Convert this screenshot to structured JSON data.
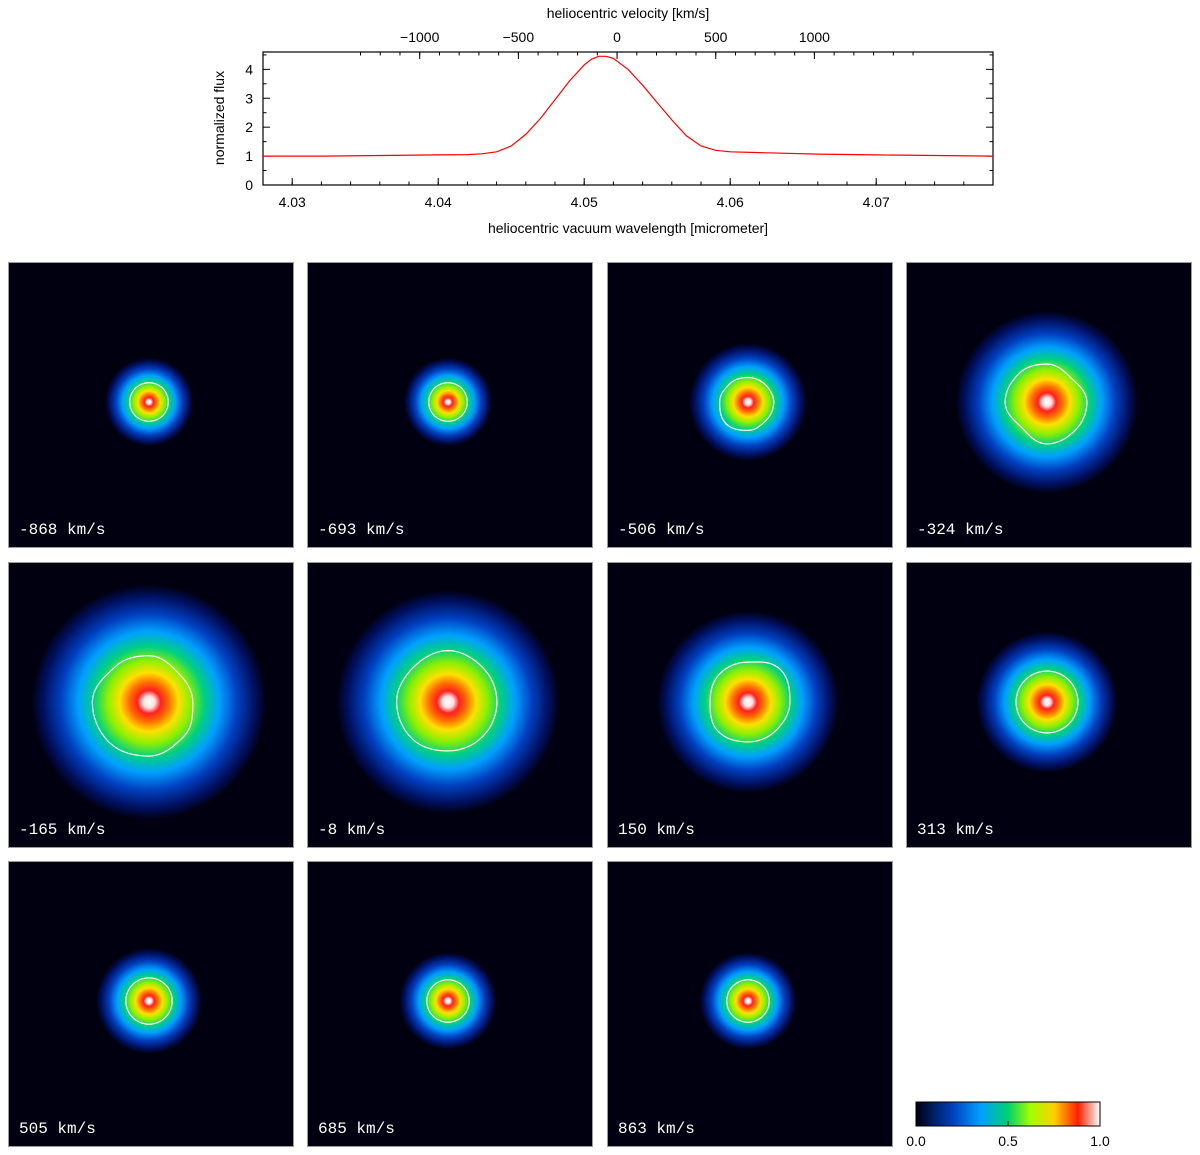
{
  "chart_data": [
    {
      "type": "line",
      "xlabel": "heliocentric vacuum wavelength [micrometer]",
      "x2label": "heliocentric velocity [km/s]",
      "ylabel": "normalized flux",
      "xlim": [
        4.028,
        4.078
      ],
      "ylim": [
        0,
        4.6
      ],
      "x_ticks": [
        "4.03",
        "4.04",
        "4.05",
        "4.06",
        "4.07"
      ],
      "x2_ticks": [
        "−1000",
        "−500",
        "0",
        "500",
        "1000"
      ],
      "x2_tick_values": [
        -1000,
        -500,
        0,
        500,
        1000
      ],
      "y_ticks": [
        "0",
        "1",
        "2",
        "3",
        "4"
      ],
      "line_color": "#ff0000",
      "series": [
        {
          "x": [
            4.028,
            4.032,
            4.036,
            4.04,
            4.042,
            4.043,
            4.044,
            4.045,
            4.046,
            4.047,
            4.048,
            4.049,
            4.05,
            4.0505,
            4.051,
            4.0515,
            4.052,
            4.053,
            4.054,
            4.055,
            4.056,
            4.057,
            4.058,
            4.059,
            4.06,
            4.062,
            4.066,
            4.07,
            4.074,
            4.078
          ],
          "y": [
            1.0,
            1.0,
            1.02,
            1.04,
            1.05,
            1.08,
            1.15,
            1.35,
            1.75,
            2.3,
            2.95,
            3.6,
            4.15,
            4.35,
            4.45,
            4.45,
            4.38,
            4.0,
            3.45,
            2.85,
            2.25,
            1.7,
            1.35,
            1.2,
            1.15,
            1.12,
            1.07,
            1.04,
            1.02,
            1.0
          ]
        }
      ]
    },
    {
      "type": "heatmap",
      "colorbar": {
        "min": 0.0,
        "max": 1.0,
        "tick_labels": [
          "0.0",
          "0.5",
          "1.0"
        ]
      },
      "contour_color": "#ffffff",
      "panels": [
        {
          "label": "-868 km/s",
          "core_size": 0.3,
          "shape": [
            1,
            1,
            1,
            1,
            1,
            1,
            1,
            1
          ]
        },
        {
          "label": "-693 km/s",
          "core_size": 0.3,
          "shape": [
            1,
            1,
            1,
            1,
            1,
            1,
            1,
            1
          ]
        },
        {
          "label": "-506 km/s",
          "core_size": 0.4,
          "shape": [
            1.0,
            0.95,
            0.95,
            1.0,
            1.1,
            1.2,
            1.1,
            1.0
          ]
        },
        {
          "label": "-324 km/s",
          "core_size": 0.62,
          "shape": [
            1.0,
            0.85,
            0.95,
            1.0,
            1.05,
            0.9,
            1.05,
            1.0
          ]
        },
        {
          "label": "-165 km/s",
          "core_size": 0.8,
          "shape": [
            0.85,
            0.8,
            0.9,
            0.95,
            1.1,
            1.1,
            1.05,
            0.95
          ]
        },
        {
          "label": "-8 km/s",
          "core_size": 0.76,
          "shape": [
            1.0,
            1.0,
            1.05,
            1.0,
            1.05,
            1.05,
            1.0,
            1.0
          ]
        },
        {
          "label": "150 km/s",
          "core_size": 0.62,
          "shape": [
            1.05,
            1.15,
            1.0,
            1.0,
            0.95,
            1.05,
            1.0,
            1.0
          ]
        },
        {
          "label": "313 km/s",
          "core_size": 0.48,
          "shape": [
            1,
            1,
            1,
            1,
            1,
            1,
            1,
            1
          ]
        },
        {
          "label": "505 km/s",
          "core_size": 0.36,
          "shape": [
            1,
            1,
            1,
            1,
            1,
            1,
            1,
            1
          ]
        },
        {
          "label": "685 km/s",
          "core_size": 0.33,
          "shape": [
            1,
            1,
            1,
            1,
            1,
            1,
            1,
            1
          ]
        },
        {
          "label": "863 km/s",
          "core_size": 0.33,
          "shape": [
            1,
            1,
            1,
            1,
            1,
            1,
            1,
            1
          ]
        }
      ]
    }
  ]
}
